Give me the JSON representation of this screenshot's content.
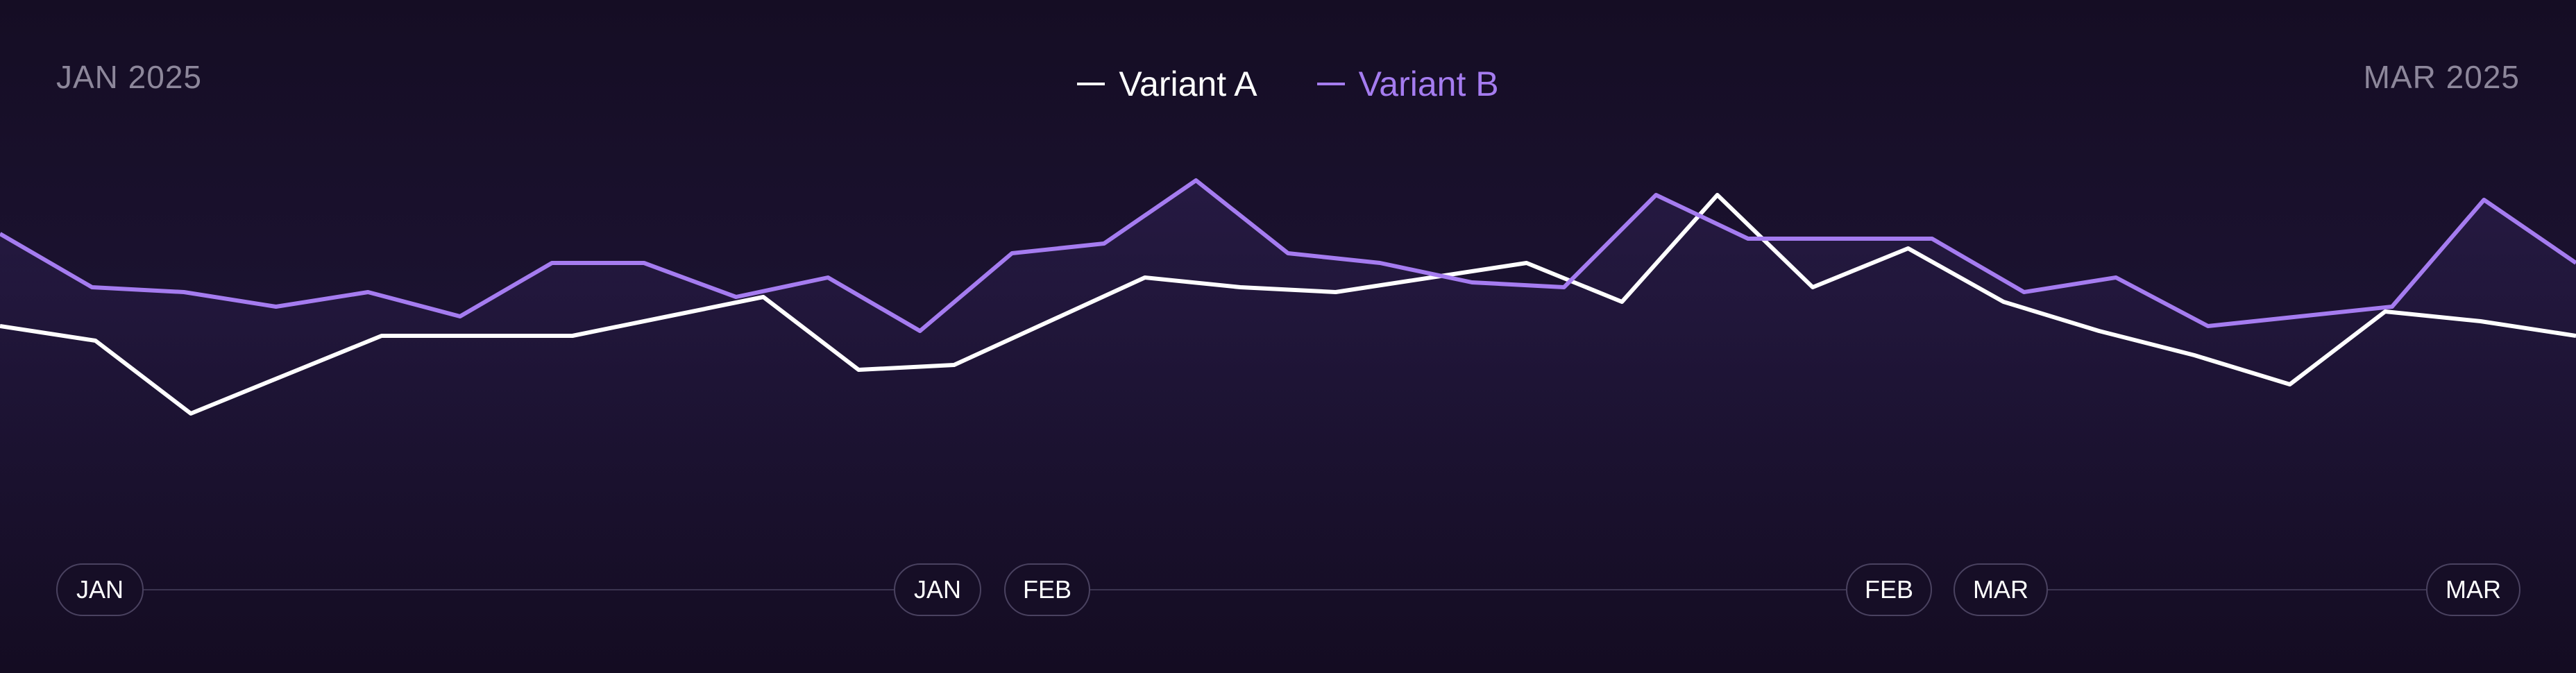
{
  "chart_data": {
    "type": "line",
    "range_start": "JAN 2025",
    "range_end": "MAR 2025",
    "ylim": [
      0,
      100
    ],
    "grid": false,
    "legend_position": "top-center",
    "series": [
      {
        "name": "Variant A",
        "color": "#ffffff",
        "values": [
          50,
          47,
          32,
          40,
          48,
          48,
          48,
          52,
          56,
          41,
          42,
          51,
          60,
          58,
          57,
          60,
          63,
          55,
          77,
          58,
          66,
          55,
          49,
          44,
          38,
          53,
          51,
          48
        ]
      },
      {
        "name": "Variant B",
        "color": "#a57cf0",
        "values": [
          69,
          58,
          57,
          54,
          57,
          52,
          63,
          63,
          56,
          60,
          49,
          65,
          67,
          80,
          65,
          63,
          59,
          58,
          77,
          68,
          68,
          68,
          57,
          60,
          50,
          52,
          54,
          76,
          63
        ]
      }
    ],
    "timeline": [
      {
        "start": "JAN",
        "end": "JAN"
      },
      {
        "start": "FEB",
        "end": "FEB"
      },
      {
        "start": "MAR",
        "end": "MAR"
      }
    ]
  },
  "colors": {
    "background": "#160e24",
    "variant_a": "#ffffff",
    "variant_b": "#a57cf0",
    "muted_text": "#8d879b",
    "pill_border": "#4a4260"
  }
}
